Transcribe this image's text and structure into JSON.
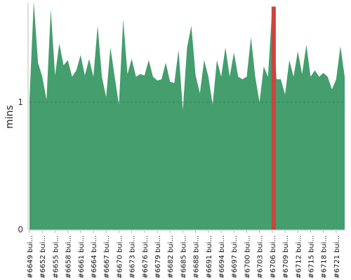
{
  "chart_data": {
    "type": "area",
    "title": "",
    "xlabel": "",
    "ylabel": "mins",
    "ylim": [
      0,
      1.78
    ],
    "y_ticks": [
      0,
      1
    ],
    "grid": "dashed line at 1",
    "legend": "none",
    "colors": {
      "area": "#449e6e",
      "highlight": "#c9463d",
      "axis": "#bbbbbb",
      "grid": "#2f7d55"
    },
    "highlight_index": 57,
    "x_labels": [
      "#6649 bui...",
      "#6652 bui...",
      "#6655 bui...",
      "#6658 bui...",
      "#6661 bui...",
      "#6664 bui...",
      "#6667 bui...",
      "#6670 bui...",
      "#6673 bui...",
      "#6676 bui...",
      "#6679 bui...",
      "#6682 bui...",
      "#6685 bui...",
      "#6688 bui...",
      "#6691 bui...",
      "#6694 bui...",
      "#6697 bui...",
      "#6700 bui...",
      "#6703 bui...",
      "#6706 bui...",
      "#6709 bui...",
      "#6712 bui...",
      "#6715 bui...",
      "#6718 bui...",
      "#6721 bui..."
    ],
    "values": [
      1.02,
      1.79,
      1.31,
      1.2,
      1.02,
      1.73,
      1.21,
      1.46,
      1.29,
      1.33,
      1.2,
      1.25,
      1.37,
      1.21,
      1.34,
      1.2,
      1.6,
      1.2,
      1.04,
      1.43,
      1.2,
      0.98,
      1.65,
      1.22,
      1.34,
      1.2,
      1.22,
      1.21,
      1.33,
      1.2,
      1.17,
      1.18,
      1.31,
      1.16,
      1.15,
      1.41,
      0.94,
      1.43,
      1.6,
      1.21,
      1.07,
      1.33,
      1.2,
      0.98,
      1.33,
      1.2,
      1.43,
      1.2,
      1.39,
      1.2,
      1.18,
      1.2,
      1.51,
      1.2,
      1.0,
      1.28,
      1.2,
      1.75,
      1.18,
      1.18,
      1.06,
      1.33,
      1.2,
      1.4,
      1.22,
      1.45,
      1.2,
      1.25,
      1.2,
      1.23,
      1.2,
      1.1,
      1.18,
      1.44,
      1.2
    ]
  }
}
